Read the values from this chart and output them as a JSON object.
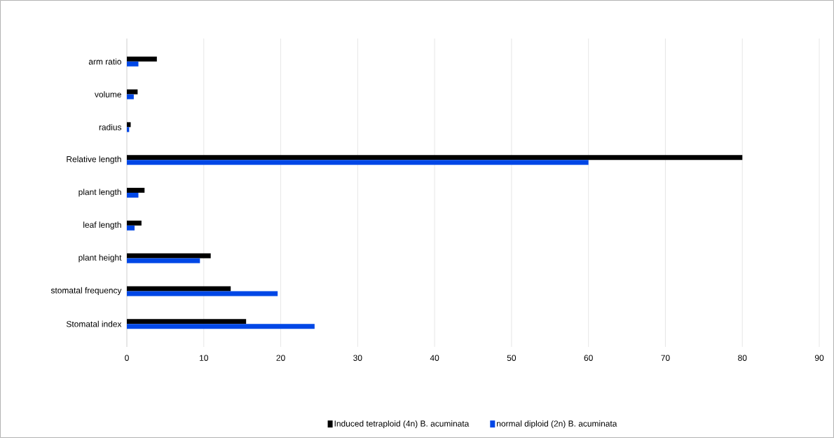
{
  "chart_data": {
    "type": "bar",
    "orientation": "horizontal",
    "categories": [
      "arm ratio",
      "volume",
      "radius",
      "Relative length",
      "plant length",
      "leaf length",
      "plant height",
      "stomatal frequency",
      "Stomatal index"
    ],
    "series": [
      {
        "name": "Induced  tetraploid (4n) B. acuminata",
        "color": "#000000",
        "values": [
          3.9,
          1.4,
          0.5,
          80,
          2.3,
          1.9,
          10.9,
          13.5,
          15.5
        ]
      },
      {
        "name": "normal diploid (2n) B. acuminata",
        "color": "#0047e6",
        "values": [
          1.5,
          0.9,
          0.3,
          60,
          1.5,
          1.0,
          9.5,
          19.6,
          24.4
        ]
      }
    ],
    "xlim": [
      0,
      90
    ],
    "xticks": [
      0,
      10,
      20,
      30,
      40,
      50,
      60,
      70,
      80,
      90
    ],
    "grid": "x",
    "legend": "bottom"
  }
}
